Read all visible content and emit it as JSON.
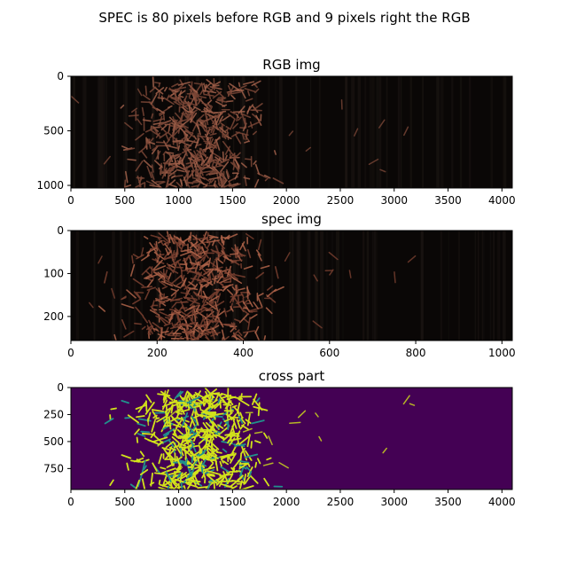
{
  "figure": {
    "suptitle": "SPEC is 80 pixels  before RGB and 9 pixels right the RGB"
  },
  "chart_data": [
    {
      "type": "heatmap",
      "title": "RGB img",
      "xlabel": "",
      "ylabel": "",
      "xlim": [
        0,
        4096
      ],
      "ylim": [
        1024,
        0
      ],
      "xticks": [
        0,
        500,
        1000,
        1500,
        2000,
        2500,
        3000,
        3500,
        4000
      ],
      "xtick_labels": [
        "0",
        "500",
        "1000",
        "1500",
        "2000",
        "2500",
        "3000",
        "3500",
        "4000"
      ],
      "yticks": [
        0,
        500,
        1000
      ],
      "ytick_labels": [
        "0",
        "500",
        "1000"
      ],
      "colors": {
        "background": "#0a0706",
        "particle": "#7a4636",
        "particle_light": "#a0604a"
      },
      "grid": false
    },
    {
      "type": "heatmap",
      "title": "spec img",
      "xlabel": "",
      "ylabel": "",
      "xlim": [
        0,
        1024
      ],
      "ylim": [
        256,
        0
      ],
      "xticks": [
        0,
        200,
        400,
        600,
        800,
        1000
      ],
      "xtick_labels": [
        "0",
        "200",
        "400",
        "600",
        "800",
        "1000"
      ],
      "yticks": [
        0,
        100,
        200
      ],
      "ytick_labels": [
        "0",
        "100",
        "200"
      ],
      "colors": {
        "background": "#0a0706",
        "particle": "#7a4030",
        "particle_light": "#b0644a"
      },
      "grid": false
    },
    {
      "type": "heatmap",
      "title": "cross part",
      "xlabel": "",
      "ylabel": "",
      "xlim": [
        0,
        4096
      ],
      "ylim": [
        944,
        0
      ],
      "xticks": [
        0,
        500,
        1000,
        1500,
        2000,
        2500,
        3000,
        3500,
        4000
      ],
      "xtick_labels": [
        "0",
        "500",
        "1000",
        "1500",
        "2000",
        "2500",
        "3000",
        "3500",
        "4000"
      ],
      "yticks": [
        0,
        250,
        500,
        750
      ],
      "ytick_labels": [
        "0",
        "250",
        "500",
        "750"
      ],
      "colors": {
        "background": "#440154",
        "mask": "#d2e21b",
        "edge": "#21918c"
      },
      "grid": false
    }
  ]
}
